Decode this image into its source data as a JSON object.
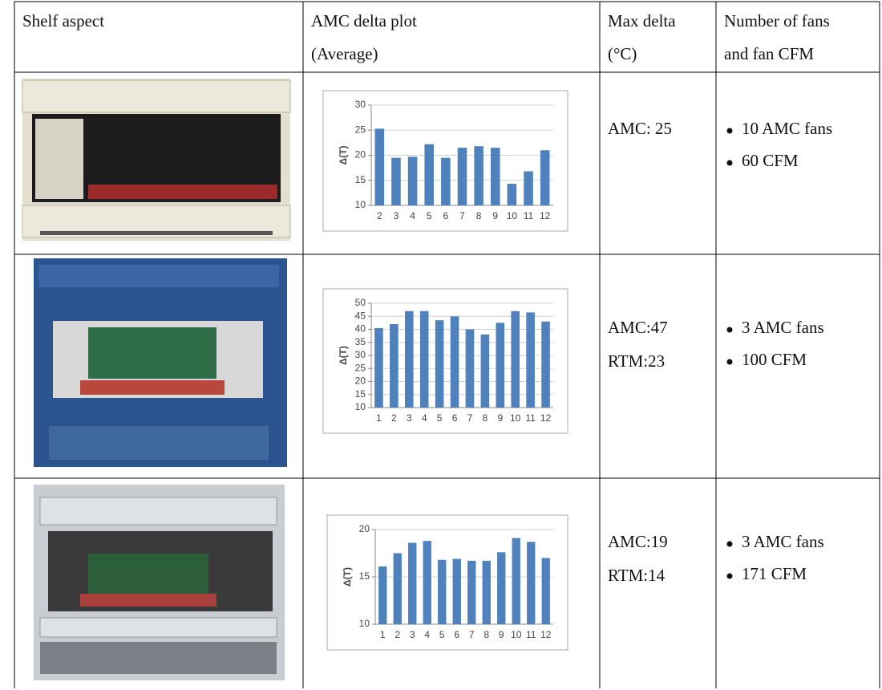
{
  "table": {
    "header": [
      [
        "Shelf aspect"
      ],
      [
        "AMC delta plot",
        "(Average)"
      ],
      [
        "Max delta",
        "(°C)"
      ],
      [
        "Number of fans",
        "and fan CFM"
      ]
    ],
    "rows": [
      {
        "chart": {
          "type": "bar",
          "y_label": "Δ(T)",
          "categories": [
            "2",
            "3",
            "4",
            "5",
            "6",
            "7",
            "8",
            "9",
            "10",
            "11",
            "12"
          ],
          "values": [
            25.3,
            19.5,
            19.7,
            22.2,
            19.5,
            21.5,
            21.8,
            21.5,
            14.3,
            16.8,
            21.0
          ],
          "color": "#4f81bd",
          "ylim": [
            10,
            30
          ],
          "yticks": [
            10,
            15,
            20,
            25,
            30
          ],
          "grid": true
        },
        "max_delta": [
          "AMC: 25"
        ],
        "fans": [
          "10 AMC fans",
          "60 CFM"
        ]
      },
      {
        "chart": {
          "type": "bar",
          "y_label": "Δ(T)",
          "categories": [
            "1",
            "2",
            "3",
            "4",
            "5",
            "6",
            "7",
            "8",
            "9",
            "10",
            "11",
            "12"
          ],
          "values": [
            40.5,
            42,
            47,
            47,
            43.5,
            45,
            40,
            38,
            42.5,
            47,
            46.5,
            43
          ],
          "color": "#4f81bd",
          "ylim": [
            10,
            50
          ],
          "yticks": [
            10,
            15,
            20,
            25,
            30,
            35,
            40,
            45,
            50
          ],
          "grid": true
        },
        "max_delta": [
          "AMC:47",
          "RTM:23"
        ],
        "fans": [
          "3 AMC fans",
          "100 CFM"
        ]
      },
      {
        "chart": {
          "type": "bar",
          "y_label": "Δ(T)",
          "categories": [
            "1",
            "2",
            "3",
            "4",
            "5",
            "6",
            "7",
            "8",
            "9",
            "10",
            "11",
            "12"
          ],
          "values": [
            16.1,
            17.5,
            18.6,
            18.8,
            16.8,
            16.9,
            16.7,
            16.7,
            17.6,
            19.1,
            18.7,
            17.0
          ],
          "color": "#4f81bd",
          "ylim": [
            10,
            20
          ],
          "yticks": [
            10,
            15,
            20
          ],
          "grid": true
        },
        "max_delta": [
          "AMC:19",
          "RTM:14"
        ],
        "fans": [
          "3 AMC fans",
          "171 CFM"
        ]
      }
    ]
  }
}
